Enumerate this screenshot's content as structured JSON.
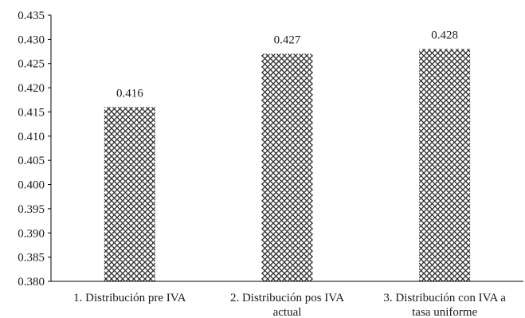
{
  "chart_data": {
    "type": "bar",
    "title": "",
    "xlabel": "",
    "ylabel": "",
    "categories": [
      [
        "1. Distribución pre IVA"
      ],
      [
        "2. Distribución pos IVA",
        "actual"
      ],
      [
        "3. Distribución con IVA a",
        "tasa uniforme"
      ]
    ],
    "values": [
      0.416,
      0.427,
      0.428
    ],
    "data_labels": [
      "0.416",
      "0.427",
      "0.428"
    ],
    "ylim": [
      0.38,
      0.435
    ],
    "yticks": [
      "0.435",
      "0.430",
      "0.425",
      "0.420",
      "0.415",
      "0.410",
      "0.405",
      "0.400",
      "0.395",
      "0.390",
      "0.385",
      "0.380"
    ],
    "grid": false,
    "legend": "none",
    "bar_pattern": "crosshatch",
    "colors": {
      "pattern": "#2b2b2b",
      "background": "#ffffff",
      "axis": "#000000"
    }
  }
}
